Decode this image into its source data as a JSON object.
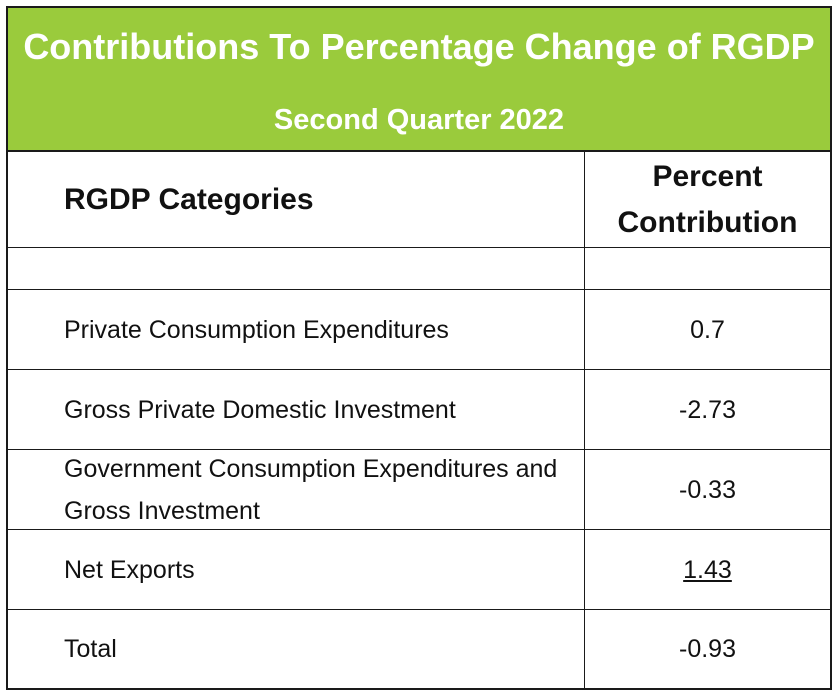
{
  "title": "Contributions To Percentage Change of RGDP",
  "subtitle": "Second Quarter 2022",
  "colors": {
    "banner": "#9acb3c",
    "banner_text": "#ffffff",
    "border": "#1a1a1a"
  },
  "table": {
    "header": {
      "category": "RGDP Categories",
      "value": "Percent Contribution"
    },
    "rows": [
      {
        "category": "Private Consumption Expenditures",
        "value": "0.7"
      },
      {
        "category": "Gross Private Domestic Investment",
        "value": "-2.73"
      },
      {
        "category": "Government Consumption Expenditures and Gross Investment",
        "value": "-0.33"
      },
      {
        "category": "Net Exports",
        "value": "1.43"
      },
      {
        "category": "Total",
        "value": "-0.93"
      }
    ]
  }
}
